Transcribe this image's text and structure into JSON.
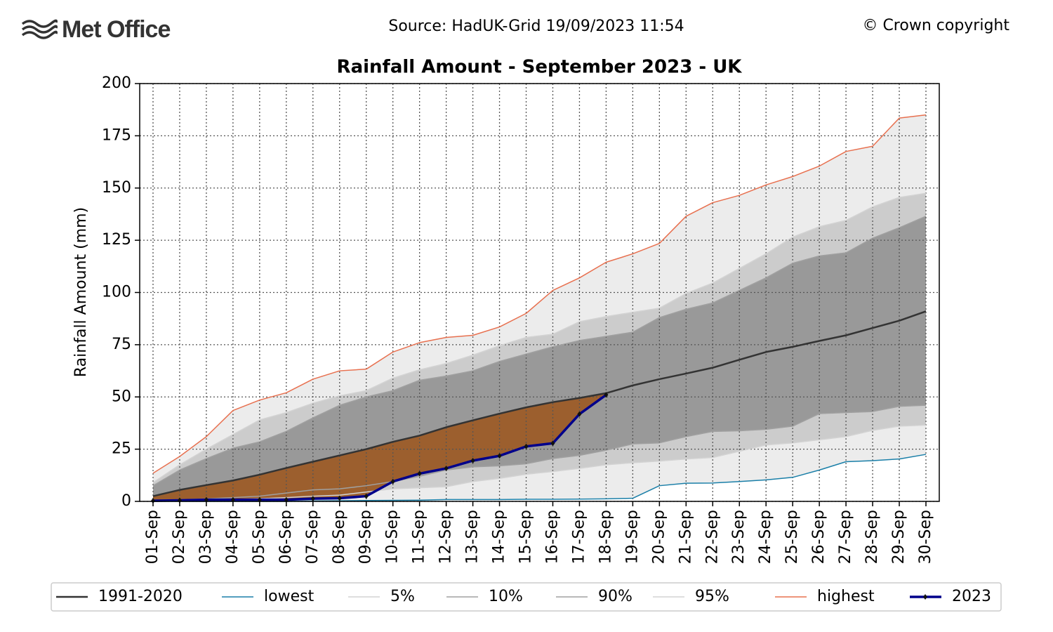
{
  "chart_data": {
    "type": "line",
    "logo": "Met Office",
    "source": "Source: HadUK-Grid 19/09/2023 11:54",
    "copyright": "© Crown copyright",
    "title": "Rainfall Amount - September 2023 - UK",
    "y_label": "Rainfall Amount (mm)",
    "categories": [
      "01-Sep",
      "02-Sep",
      "03-Sep",
      "04-Sep",
      "05-Sep",
      "06-Sep",
      "07-Sep",
      "08-Sep",
      "09-Sep",
      "10-Sep",
      "11-Sep",
      "12-Sep",
      "13-Sep",
      "14-Sep",
      "15-Sep",
      "16-Sep",
      "17-Sep",
      "18-Sep",
      "19-Sep",
      "20-Sep",
      "21-Sep",
      "22-Sep",
      "23-Sep",
      "24-Sep",
      "25-Sep",
      "26-Sep",
      "27-Sep",
      "28-Sep",
      "29-Sep",
      "30-Sep"
    ],
    "ylim": [
      0,
      200
    ],
    "yticks": [
      0,
      25,
      50,
      75,
      100,
      125,
      150,
      175,
      200
    ],
    "grid": true,
    "legend": "bottom",
    "series": [
      {
        "name": "1991-2020",
        "color": "#333333",
        "width": 2.5,
        "values": [
          2.5,
          5.5,
          7.8,
          10,
          12.8,
          16,
          19,
          22,
          25,
          28.5,
          31.5,
          35.5,
          38.8,
          42,
          45,
          47.5,
          49.5,
          51.8,
          55.5,
          58.5,
          61.2,
          64,
          67.8,
          71.5,
          74,
          76.8,
          79.5,
          83,
          86.5,
          91
        ]
      },
      {
        "name": "lowest",
        "color": "#1a7fa8",
        "width": 1.5,
        "values": [
          0,
          0,
          0,
          0,
          0,
          0,
          0.2,
          0.3,
          0.4,
          0.5,
          0.6,
          0.9,
          0.9,
          0.9,
          1,
          1,
          1.1,
          1.2,
          1.5,
          7.5,
          8.7,
          8.8,
          9.5,
          10.3,
          11.5,
          15,
          19,
          19.5,
          20.3,
          22.5
        ]
      },
      {
        "name": "5%",
        "color": "#d3d3d3",
        "width": 1.5,
        "values": [
          0.3,
          0.5,
          0.8,
          1,
          1.3,
          1.8,
          2.5,
          3,
          4.5,
          6,
          6.5,
          7,
          9.5,
          11,
          13,
          14.3,
          15.8,
          17.5,
          18.5,
          19.3,
          20.3,
          21,
          24,
          27,
          28,
          29.5,
          31,
          34,
          36,
          36.5
        ]
      },
      {
        "name": "10%",
        "color": "#a0a0a0",
        "width": 1.5,
        "values": [
          0.5,
          0.8,
          1.2,
          1.8,
          2.5,
          4,
          5.5,
          6,
          7.5,
          9.5,
          12,
          15,
          16.5,
          17,
          18,
          20.5,
          22,
          24.5,
          27.5,
          28,
          31,
          33.5,
          33.8,
          34.5,
          36,
          42,
          42.5,
          43,
          45.5,
          46
        ]
      },
      {
        "name": "90%",
        "color": "#a0a0a0",
        "width": 1.5,
        "fill": "#999999",
        "fill_to": "10%",
        "values": [
          7.5,
          15,
          20.5,
          25.5,
          28.5,
          33.5,
          40,
          46,
          50,
          53,
          58,
          60,
          62.5,
          67,
          70.5,
          74,
          77,
          79,
          81,
          88,
          92,
          95,
          101,
          107,
          114,
          117.5,
          119,
          126,
          131,
          136.5
        ]
      },
      {
        "name": "95%",
        "color": "#d3d3d3",
        "width": 1.5,
        "fill": "#cccccc",
        "fill_to": "5%",
        "values": [
          9,
          17.5,
          25,
          32,
          39,
          42.5,
          47,
          50.5,
          53,
          59,
          63,
          66,
          70,
          74.5,
          78.5,
          80,
          86,
          88.5,
          90.5,
          92.5,
          99.5,
          104.5,
          111.5,
          118.5,
          126.5,
          131.5,
          134.5,
          141,
          145.5,
          147.5
        ]
      },
      {
        "name": "highest",
        "color": "#e8704f",
        "width": 1.5,
        "fill": "#ececec",
        "fill_to": "lowest",
        "values": [
          13.5,
          21.5,
          31,
          43.5,
          48.5,
          52,
          58.5,
          62.5,
          63.3,
          71.5,
          76,
          78.5,
          79.5,
          83.5,
          90,
          101,
          107,
          114.5,
          118.5,
          123.5,
          136.5,
          143,
          146.5,
          151.5,
          155.5,
          160.5,
          167.5,
          170,
          183.5,
          185
        ]
      },
      {
        "name": "2023",
        "color": "#00008b",
        "width": 3.5,
        "marker": "#111111",
        "fill": "#9c5f2e",
        "fill_to": "1991-2020",
        "values": [
          0.3,
          0.5,
          0.8,
          0.8,
          0.8,
          0.8,
          1.3,
          1.5,
          2.5,
          9.5,
          13.3,
          15.8,
          19.5,
          21.8,
          26.3,
          27.8,
          41.8,
          51,
          null,
          null,
          null,
          null,
          null,
          null,
          null,
          null,
          null,
          null,
          null,
          null
        ]
      }
    ]
  }
}
